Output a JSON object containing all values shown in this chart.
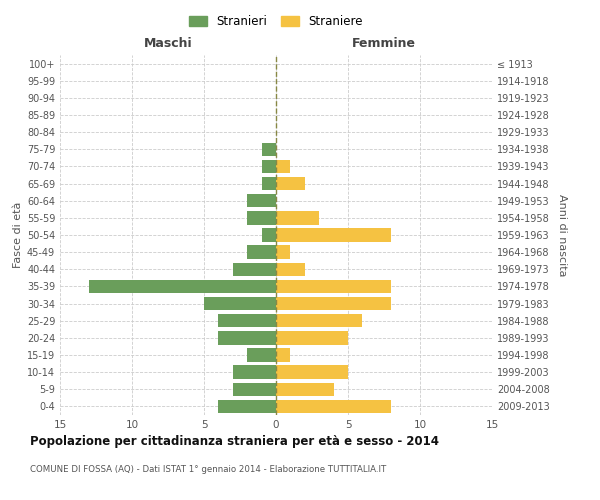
{
  "age_groups_bottom_to_top": [
    "0-4",
    "5-9",
    "10-14",
    "15-19",
    "20-24",
    "25-29",
    "30-34",
    "35-39",
    "40-44",
    "45-49",
    "50-54",
    "55-59",
    "60-64",
    "65-69",
    "70-74",
    "75-79",
    "80-84",
    "85-89",
    "90-94",
    "95-99",
    "100+"
  ],
  "birth_years_bottom_to_top": [
    "2009-2013",
    "2004-2008",
    "1999-2003",
    "1994-1998",
    "1989-1993",
    "1984-1988",
    "1979-1983",
    "1974-1978",
    "1969-1973",
    "1964-1968",
    "1959-1963",
    "1954-1958",
    "1949-1953",
    "1944-1948",
    "1939-1943",
    "1934-1938",
    "1929-1933",
    "1924-1928",
    "1919-1923",
    "1914-1918",
    "≤ 1913"
  ],
  "maschi_bottom_to_top": [
    4,
    3,
    3,
    2,
    4,
    4,
    5,
    13,
    3,
    2,
    1,
    2,
    2,
    1,
    1,
    1,
    0,
    0,
    0,
    0,
    0
  ],
  "femmine_bottom_to_top": [
    8,
    4,
    5,
    1,
    5,
    6,
    8,
    8,
    2,
    1,
    8,
    3,
    0,
    2,
    1,
    0,
    0,
    0,
    0,
    0,
    0
  ],
  "color_maschi": "#6a9e5b",
  "color_femmine": "#f5c242",
  "title": "Popolazione per cittadinanza straniera per età e sesso - 2014",
  "subtitle": "COMUNE DI FOSSA (AQ) - Dati ISTAT 1° gennaio 2014 - Elaborazione TUTTITALIA.IT",
  "xlabel_left": "Maschi",
  "xlabel_right": "Femmine",
  "ylabel_left": "Fasce di età",
  "ylabel_right": "Anni di nascita",
  "legend_maschi": "Stranieri",
  "legend_femmine": "Straniere",
  "xlim": 15,
  "background_color": "#ffffff",
  "grid_color": "#cccccc"
}
